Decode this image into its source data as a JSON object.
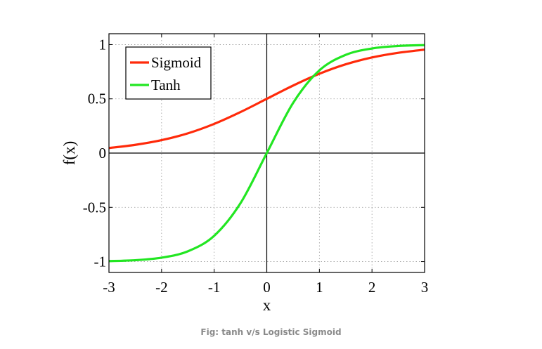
{
  "caption": "Fig: tanh v/s Logistic Sigmoid",
  "chart_data": {
    "type": "line",
    "title": "",
    "xlabel": "x",
    "ylabel": "f(x)",
    "xlim": [
      -3,
      3
    ],
    "ylim": [
      -1.1,
      1.1
    ],
    "xticks": [
      -3,
      -2,
      -1,
      0,
      1,
      2,
      3
    ],
    "yticks": [
      1,
      0.5,
      0,
      -0.5,
      -1
    ],
    "xtick_labels": [
      "-3",
      "-2",
      "-1",
      "0",
      "1",
      "2",
      "3"
    ],
    "ytick_labels": [
      "1",
      "0.5",
      "0",
      "-0.5",
      "-1"
    ],
    "grid": true,
    "legend_position": "top-left",
    "x": [
      -3,
      -2.5,
      -2,
      -1.5,
      -1,
      -0.5,
      0,
      0.5,
      1,
      1.5,
      2,
      2.5,
      3
    ],
    "series": [
      {
        "name": "Sigmoid",
        "color": "#ff2a0a",
        "values": [
          0.047,
          0.076,
          0.119,
          0.182,
          0.269,
          0.378,
          0.5,
          0.622,
          0.731,
          0.818,
          0.881,
          0.924,
          0.953
        ]
      },
      {
        "name": "Tanh",
        "color": "#22e622",
        "values": [
          -0.995,
          -0.987,
          -0.964,
          -0.905,
          -0.762,
          -0.462,
          0,
          0.462,
          0.762,
          0.905,
          0.964,
          0.987,
          0.995
        ]
      }
    ]
  }
}
